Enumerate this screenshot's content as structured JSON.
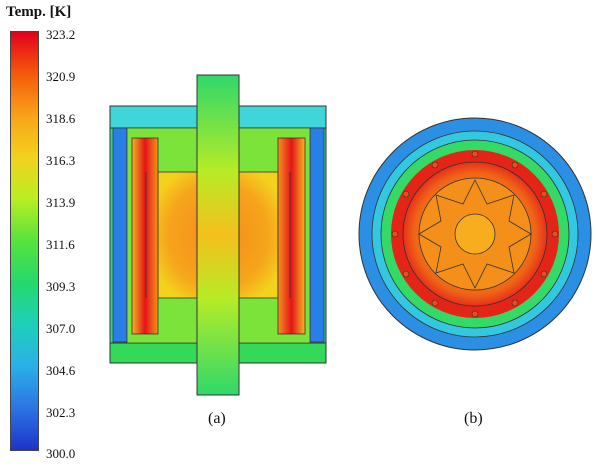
{
  "legend": {
    "title": "Temp. [K]",
    "ticks": [
      "323.2",
      "320.9",
      "318.6",
      "316.3",
      "313.9",
      "311.6",
      "309.3",
      "307.0",
      "304.6",
      "302.3",
      "300.0"
    ],
    "colormap": [
      "#e3001b",
      "#f45a0a",
      "#f9a21a",
      "#f2d21c",
      "#b8ee23",
      "#56e33c",
      "#25d86c",
      "#1ed0b9",
      "#2ab0e6",
      "#2c74e4",
      "#1c34c8"
    ]
  },
  "panels": {
    "a": {
      "caption": "(a)"
    },
    "b": {
      "caption": "(b)"
    }
  }
}
